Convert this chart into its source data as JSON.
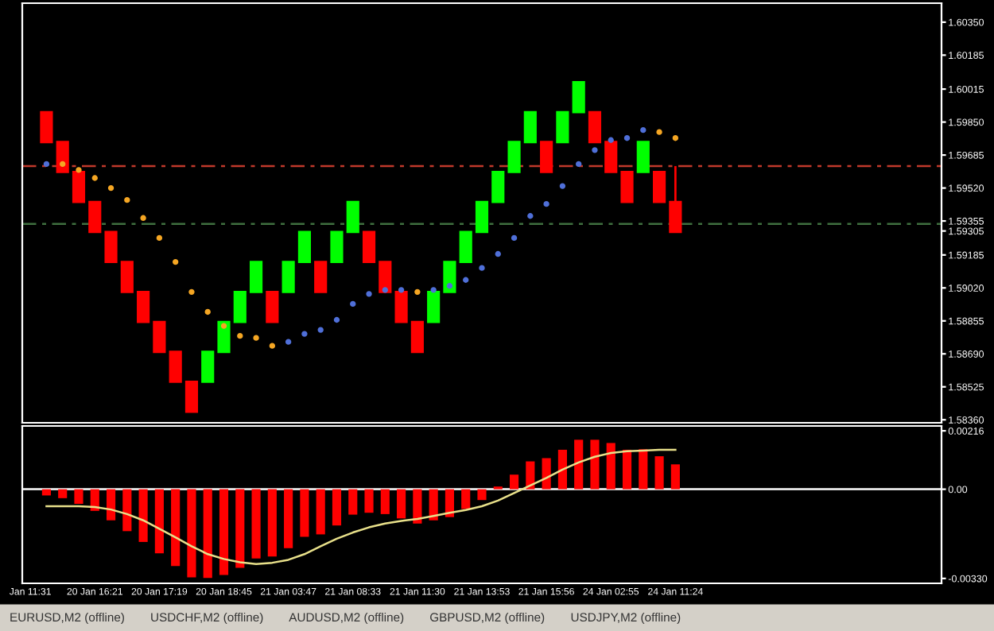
{
  "chart_data": [
    {
      "type": "candlestick",
      "categories": [
        null,
        null,
        null,
        null,
        null,
        null,
        null,
        null,
        null,
        null,
        null,
        null,
        null,
        null,
        null,
        null,
        null,
        null,
        null,
        null,
        null,
        null,
        null,
        null,
        null,
        null,
        null,
        null,
        null,
        null,
        null,
        null,
        null,
        null,
        null,
        null,
        null,
        null,
        null,
        null,
        null,
        null,
        null,
        null,
        null,
        null,
        null,
        null,
        null,
        null,
        null,
        null,
        null,
        null,
        null,
        null,
        null
      ],
      "ohlc": [
        null,
        [
          1.599,
          1.599,
          1.5975,
          1.5975
        ],
        [
          1.5975,
          1.5975,
          1.596,
          1.596
        ],
        [
          1.596,
          1.596,
          1.5945,
          1.5945
        ],
        [
          1.5945,
          1.5945,
          1.593,
          1.593
        ],
        [
          1.593,
          1.593,
          1.5915,
          1.5915
        ],
        [
          1.5915,
          1.5915,
          1.59,
          1.59
        ],
        [
          1.59,
          1.59,
          1.5885,
          1.5885
        ],
        [
          1.5885,
          1.5885,
          1.587,
          1.587
        ],
        [
          1.587,
          1.587,
          1.5855,
          1.5855
        ],
        [
          1.5855,
          1.5855,
          1.584,
          1.584
        ],
        [
          1.5855,
          1.587,
          1.5855,
          1.587
        ],
        [
          1.587,
          1.5885,
          1.587,
          1.5885
        ],
        [
          1.5885,
          1.59,
          1.5885,
          1.59
        ],
        [
          1.59,
          1.5915,
          1.59,
          1.5915
        ],
        [
          1.59,
          1.59,
          1.5885,
          1.5885
        ],
        [
          1.59,
          1.5915,
          1.59,
          1.5915
        ],
        [
          1.5915,
          1.593,
          1.5915,
          1.593
        ],
        [
          1.5915,
          1.5915,
          1.59,
          1.59
        ],
        [
          1.5915,
          1.593,
          1.5915,
          1.593
        ],
        [
          1.593,
          1.5945,
          1.593,
          1.5945
        ],
        [
          1.593,
          1.593,
          1.5915,
          1.5915
        ],
        [
          1.5915,
          1.5915,
          1.59,
          1.59
        ],
        [
          1.59,
          1.59,
          1.5885,
          1.5885
        ],
        [
          1.5885,
          1.5885,
          1.587,
          1.587
        ],
        [
          1.5885,
          1.59,
          1.5885,
          1.59
        ],
        [
          1.59,
          1.5915,
          1.59,
          1.5915
        ],
        [
          1.5915,
          1.593,
          1.5915,
          1.593
        ],
        [
          1.593,
          1.5945,
          1.593,
          1.5945
        ],
        [
          1.5945,
          1.596,
          1.5945,
          1.596
        ],
        [
          1.596,
          1.5975,
          1.596,
          1.5975
        ],
        [
          1.5975,
          1.599,
          1.5975,
          1.599
        ],
        [
          1.5975,
          1.5975,
          1.596,
          1.596
        ],
        [
          1.5975,
          1.599,
          1.5975,
          1.599
        ],
        [
          1.599,
          1.6005,
          1.599,
          1.6005
        ],
        [
          1.599,
          1.599,
          1.5975,
          1.5975
        ],
        [
          1.5975,
          1.5975,
          1.596,
          1.596
        ],
        [
          1.596,
          1.596,
          1.5945,
          1.5945
        ],
        [
          1.596,
          1.5975,
          1.596,
          1.5975
        ],
        [
          1.596,
          1.596,
          1.5945,
          1.5945
        ],
        [
          1.5945,
          1.5963,
          1.593,
          1.593
        ],
        null,
        null,
        null,
        null,
        null,
        null,
        null,
        null,
        null,
        null,
        null,
        null,
        null,
        null,
        null,
        null
      ],
      "colors": [
        null,
        "#ff0000",
        "#ff0000",
        "#ff0000",
        "#ff0000",
        "#ff0000",
        "#ff0000",
        "#ff0000",
        "#ff0000",
        "#ff0000",
        "#ff0000",
        "#00ff00",
        "#00ff00",
        "#00ff00",
        "#00ff00",
        "#ff0000",
        "#00ff00",
        "#00ff00",
        "#ff0000",
        "#00ff00",
        "#00ff00",
        "#ff0000",
        "#ff0000",
        "#ff0000",
        "#ff0000",
        "#00ff00",
        "#00ff00",
        "#00ff00",
        "#00ff00",
        "#00ff00",
        "#00ff00",
        "#00ff00",
        "#ff0000",
        "#00ff00",
        "#00ff00",
        "#ff0000",
        "#ff0000",
        "#ff0000",
        "#00ff00",
        "#ff0000",
        "#ff0000",
        null,
        null,
        null,
        null,
        null,
        null,
        null,
        null,
        null,
        null,
        null,
        null,
        null,
        null,
        null,
        null
      ],
      "series": [
        {
          "type": "scatter",
          "color": "#4f6fd8",
          "values": [
            null,
            1.5964,
            null,
            null,
            null,
            null,
            null,
            null,
            null,
            null,
            null,
            null,
            null,
            null,
            null,
            null,
            1.5875,
            1.5879,
            1.5881,
            1.5886,
            1.5894,
            1.5899,
            1.5901,
            1.5901,
            null,
            1.5901,
            1.5903,
            1.5906,
            1.5912,
            1.5919,
            1.5927,
            1.5938,
            1.5944,
            1.5953,
            1.5964,
            1.5971,
            1.5976,
            1.5977,
            1.5981,
            null,
            null,
            null,
            null,
            null,
            null,
            null,
            null,
            null,
            null,
            null,
            null,
            null,
            null,
            null,
            null,
            null,
            null
          ]
        },
        {
          "type": "scatter",
          "color": "#f5a623",
          "values": [
            null,
            null,
            1.5964,
            1.5961,
            1.5957,
            1.5952,
            1.5946,
            1.5937,
            1.5927,
            1.5915,
            1.59,
            1.589,
            1.5883,
            1.5878,
            1.5877,
            1.5873,
            null,
            null,
            null,
            null,
            null,
            null,
            null,
            null,
            1.59,
            null,
            null,
            null,
            null,
            null,
            null,
            null,
            null,
            null,
            null,
            null,
            null,
            null,
            null,
            1.598,
            1.5977,
            null,
            null,
            null,
            null,
            null,
            null,
            null,
            null,
            null,
            null,
            null,
            null,
            null,
            null,
            null,
            null
          ]
        }
      ],
      "marker": "circle",
      "ylim": [
        1.58345,
        1.60445
      ],
      "yticks": [
        {
          "value": 1.6035,
          "label": "1.60350"
        },
        1.60185,
        1.60015,
        {
          "value": 1.5985,
          "label": "1.59850"
        },
        1.59685,
        {
          "value": 1.5952,
          "label": "1.59520"
        },
        1.59355,
        {
          "value": 1.59305,
          "label": "1.59305"
        },
        1.59185,
        {
          "value": 1.5902,
          "label": "1.59020"
        },
        1.58855,
        {
          "value": 1.5869,
          "label": "1.58690"
        },
        1.58525,
        {
          "value": 1.5836,
          "label": "1.58360"
        }
      ],
      "ref_lines": [
        {
          "axis": "y",
          "value": 1.5963,
          "color": "#c0392b",
          "line_style": "dashed"
        },
        {
          "axis": "y",
          "value": 1.5934,
          "color": "#3f6f3f",
          "line_style": "dashed"
        }
      ],
      "tick_labels": "y"
    },
    {
      "type": "bar",
      "categories": [
        "Jan 11:31",
        null,
        null,
        null,
        "20 Jan 16:21",
        null,
        null,
        null,
        "20 Jan 17:19",
        null,
        null,
        null,
        "20 Jan 18:45",
        null,
        null,
        null,
        "21 Jan 03:47",
        null,
        null,
        null,
        "21 Jan 08:33",
        null,
        null,
        null,
        "21 Jan 11:30",
        null,
        null,
        null,
        "21 Jan 13:53",
        null,
        null,
        null,
        "21 Jan 15:56",
        null,
        null,
        null,
        "24 Jan 02:55",
        null,
        null,
        null,
        "24 Jan 11:24",
        null,
        null,
        null,
        null,
        null,
        null,
        null,
        null,
        null,
        null,
        null,
        null,
        null,
        null,
        null,
        null
      ],
      "series": [
        {
          "type": "bar",
          "color": "#ff0000",
          "values": [
            null,
            -0.00023,
            -0.00033,
            -0.00054,
            -0.0008,
            -0.00115,
            -0.00155,
            -0.00195,
            -0.00237,
            -0.00284,
            -0.00326,
            -0.00328,
            -0.00317,
            -0.00291,
            -0.00256,
            -0.00249,
            -0.00218,
            -0.00176,
            -0.00167,
            -0.00134,
            -0.00094,
            -0.00087,
            -0.00092,
            -0.00108,
            -0.00127,
            -0.00115,
            -0.00103,
            -0.00073,
            -0.0004,
            0.0001,
            0.00054,
            0.00103,
            0.00115,
            0.00146,
            0.00183,
            0.00183,
            0.00171,
            0.00146,
            0.00148,
            0.00122,
            0.00092,
            null,
            null,
            null,
            null,
            null,
            null,
            null,
            null,
            null,
            null,
            null,
            null,
            null,
            null,
            null,
            null
          ]
        },
        {
          "type": "line",
          "color": "#e8e08a",
          "values": [
            null,
            -0.00063,
            -0.00063,
            -0.00063,
            -0.00066,
            -0.00075,
            -0.00092,
            -0.00115,
            -0.00146,
            -0.00178,
            -0.00211,
            -0.0024,
            -0.00258,
            -0.0027,
            -0.00277,
            -0.00272,
            -0.00261,
            -0.0024,
            -0.00211,
            -0.00183,
            -0.0016,
            -0.00141,
            -0.00127,
            -0.00117,
            -0.0011,
            -0.00099,
            -0.00087,
            -0.00077,
            -0.00063,
            -0.00042,
            -0.00014,
            0.00014,
            0.00042,
            0.00073,
            0.00099,
            0.0012,
            0.00134,
            0.00141,
            0.00143,
            0.00146,
            0.00146,
            null,
            null,
            null,
            null,
            null,
            null,
            null,
            null,
            null,
            null,
            null,
            null,
            null,
            null,
            null,
            null
          ]
        }
      ],
      "ylim": [
        -0.00348,
        0.00234
      ],
      "yticks": [
        0.00216,
        {
          "value": 0,
          "label": "0.00"
        },
        {
          "value": -0.0033,
          "label": "-0.00330"
        }
      ],
      "ref_lines": [
        {
          "axis": "y",
          "value": 0,
          "color": "#ffffff",
          "line_style": "solid"
        }
      ],
      "annotations": [
        "EURUSD,M2 (offline)",
        "USDCHF,M2 (offline)",
        "AUDUSD,M2 (offline)",
        "GBPUSD,M2 (offline)",
        "USDJPY,M2 (offline)"
      ]
    }
  ]
}
